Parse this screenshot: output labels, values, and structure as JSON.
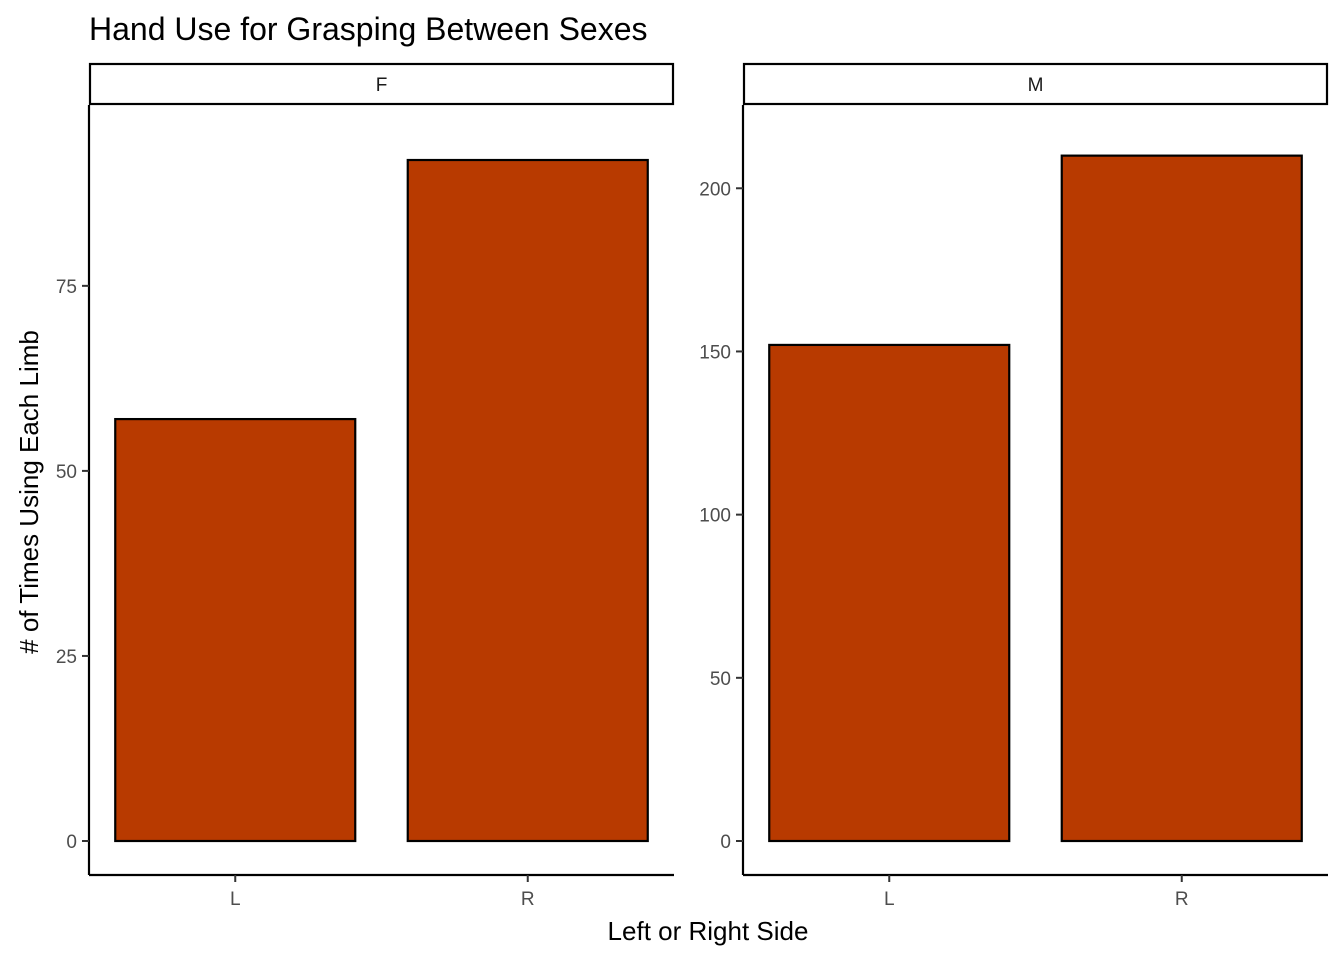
{
  "chart_data": {
    "type": "bar",
    "title": "Hand Use for Grasping Between Sexes",
    "xlabel": "Left or Right Side",
    "ylabel": "# of Times Using Each Limb",
    "categories": [
      "L",
      "R"
    ],
    "facets": [
      {
        "strip_label": "F",
        "values": [
          57,
          92
        ],
        "ylim": [
          0,
          97
        ],
        "yticks": [
          0,
          25,
          50,
          75
        ]
      },
      {
        "strip_label": "M",
        "values": [
          152,
          210
        ],
        "ylim": [
          0,
          220
        ],
        "yticks": [
          0,
          50,
          100,
          150,
          200
        ]
      }
    ],
    "bar_fill": "#B83A00",
    "bar_stroke": "#000000",
    "grid": false,
    "legend": "none"
  }
}
